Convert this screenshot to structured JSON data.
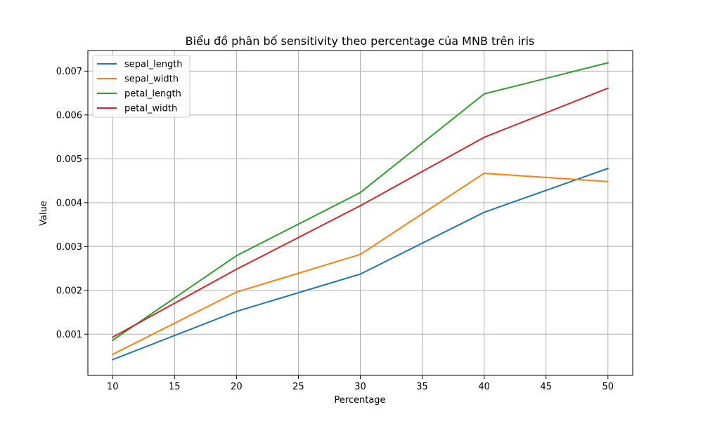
{
  "chart_data": {
    "type": "line",
    "title": "Biểu đồ phân bố sensitivity theo percentage của MNB trên iris",
    "xlabel": "Percentage",
    "ylabel": "Value",
    "x": [
      10,
      20,
      30,
      40,
      50
    ],
    "xlim": [
      8,
      52
    ],
    "ylim": [
      6e-05,
      0.00747
    ],
    "xticks": [
      10,
      15,
      20,
      25,
      30,
      35,
      40,
      45,
      50
    ],
    "yticks": [
      0.001,
      0.002,
      0.003,
      0.004,
      0.005,
      0.006,
      0.007
    ],
    "ytick_labels": [
      "0.001",
      "0.002",
      "0.003",
      "0.004",
      "0.005",
      "0.006",
      "0.007"
    ],
    "grid": true,
    "legend": "top-left",
    "series": [
      {
        "name": "sepal_length",
        "color": "#1f77b4",
        "values": [
          0.00042,
          0.00152,
          0.00237,
          0.00378,
          0.00478
        ]
      },
      {
        "name": "sepal_width",
        "color": "#ff7f0e",
        "values": [
          0.00054,
          0.00196,
          0.00282,
          0.00467,
          0.00448
        ]
      },
      {
        "name": "petal_length",
        "color": "#2ca02c",
        "values": [
          0.00086,
          0.00279,
          0.00423,
          0.00648,
          0.00719
        ]
      },
      {
        "name": "petal_width",
        "color": "#d62728",
        "values": [
          0.00093,
          0.00248,
          0.00393,
          0.00549,
          0.00661
        ]
      }
    ]
  }
}
